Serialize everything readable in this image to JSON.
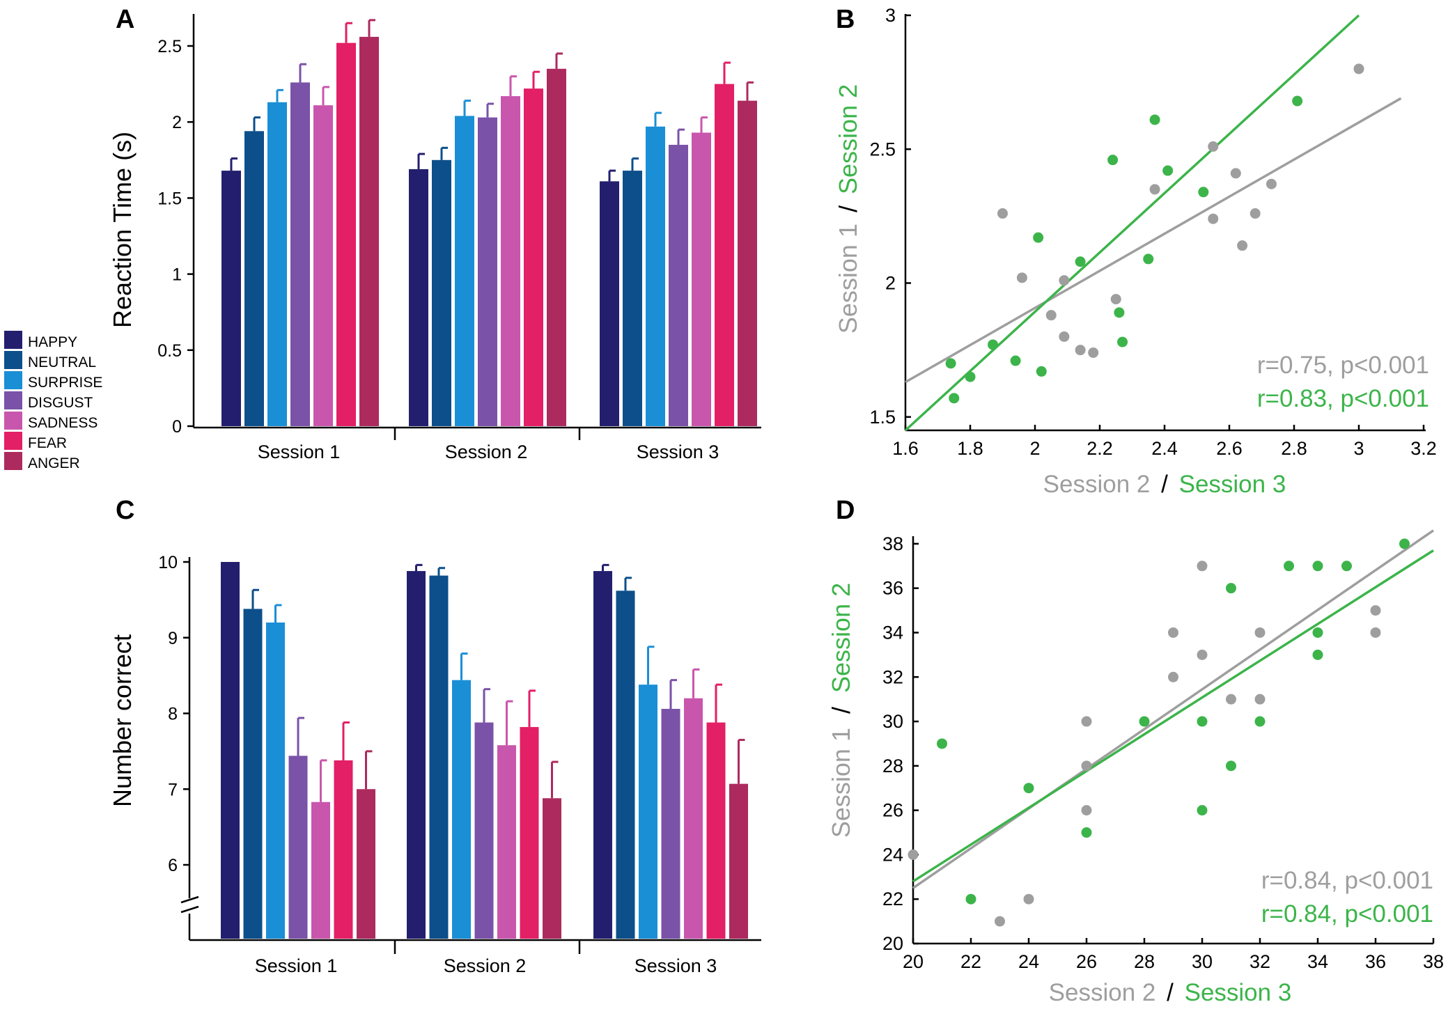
{
  "colors": {
    "HAPPY": "#231f6e",
    "NEUTRAL": "#0c4f8a",
    "SURPRISE": "#1a8fd6",
    "DISGUST": "#7a52a8",
    "SADNESS": "#c956ad",
    "FEAR": "#e31f66",
    "ANGER": "#ad2a5e",
    "gray": "#9e9e9e",
    "green": "#3cb44a"
  },
  "legend": [
    "HAPPY",
    "NEUTRAL",
    "SURPRISE",
    "DISGUST",
    "SADNESS",
    "FEAR",
    "ANGER"
  ],
  "chart_data": [
    {
      "panel": "A",
      "type": "bar",
      "ylabel": "Reaction Time (s)",
      "xlabel": "",
      "ylim": [
        0,
        2.7
      ],
      "yticks": [
        "0",
        "0.5",
        "1",
        "1.5",
        "2",
        "2.5"
      ],
      "categories": [
        "Session 1",
        "Session 2",
        "Session 3"
      ],
      "series": [
        {
          "name": "HAPPY",
          "values": [
            1.68,
            1.69,
            1.61
          ],
          "errors": [
            0.08,
            0.1,
            0.07
          ]
        },
        {
          "name": "NEUTRAL",
          "values": [
            1.94,
            1.75,
            1.68
          ],
          "errors": [
            0.09,
            0.08,
            0.08
          ]
        },
        {
          "name": "SURPRISE",
          "values": [
            2.13,
            2.04,
            1.97
          ],
          "errors": [
            0.08,
            0.1,
            0.09
          ]
        },
        {
          "name": "DISGUST",
          "values": [
            2.26,
            2.03,
            1.85
          ],
          "errors": [
            0.12,
            0.09,
            0.1
          ]
        },
        {
          "name": "SADNESS",
          "values": [
            2.11,
            2.17,
            1.93
          ],
          "errors": [
            0.12,
            0.13,
            0.1
          ]
        },
        {
          "name": "FEAR",
          "values": [
            2.52,
            2.22,
            2.25
          ],
          "errors": [
            0.13,
            0.11,
            0.14
          ]
        },
        {
          "name": "ANGER",
          "values": [
            2.56,
            2.35,
            2.14
          ],
          "errors": [
            0.11,
            0.1,
            0.12
          ]
        }
      ]
    },
    {
      "panel": "B",
      "type": "scatter",
      "xlabel_a": "Session 2",
      "xlabel_sep": "/",
      "xlabel_b": "Session 3",
      "ylabel_a": "Session 1",
      "ylabel_sep": "/",
      "ylabel_b": "Session 2",
      "xlim": [
        1.6,
        3.2
      ],
      "ylim": [
        1.45,
        3.0
      ],
      "xticks": [
        "1.6",
        "1.8",
        "2",
        "2.2",
        "2.4",
        "2.6",
        "2.8",
        "3",
        "3.2"
      ],
      "yticks": [
        "1.5",
        "2",
        "2.5",
        "3"
      ],
      "annotations": [
        "r=0.75, p<0.001",
        "r=0.83, p<0.001"
      ],
      "series": [
        {
          "name": "gray",
          "points": [
            [
              1.9,
              2.26
            ],
            [
              1.96,
              2.02
            ],
            [
              2.09,
              2.01
            ],
            [
              2.05,
              1.88
            ],
            [
              2.09,
              1.8
            ],
            [
              2.14,
              1.75
            ],
            [
              2.18,
              1.74
            ],
            [
              2.25,
              1.94
            ],
            [
              2.37,
              2.35
            ],
            [
              2.55,
              2.51
            ],
            [
              2.55,
              2.24
            ],
            [
              2.62,
              2.41
            ],
            [
              2.64,
              2.14
            ],
            [
              2.68,
              2.26
            ],
            [
              2.73,
              2.37
            ],
            [
              3.0,
              2.8
            ]
          ],
          "fit": [
            [
              1.6,
              1.63
            ],
            [
              3.13,
              2.69
            ]
          ]
        },
        {
          "name": "green",
          "points": [
            [
              1.74,
              1.7
            ],
            [
              1.75,
              1.57
            ],
            [
              1.8,
              1.65
            ],
            [
              1.87,
              1.77
            ],
            [
              1.94,
              1.71
            ],
            [
              2.01,
              2.17
            ],
            [
              2.02,
              1.67
            ],
            [
              2.14,
              2.08
            ],
            [
              2.24,
              2.46
            ],
            [
              2.26,
              1.89
            ],
            [
              2.27,
              1.78
            ],
            [
              2.35,
              2.09
            ],
            [
              2.37,
              2.61
            ],
            [
              2.41,
              2.42
            ],
            [
              2.52,
              2.34
            ],
            [
              2.81,
              2.68
            ]
          ],
          "fit": [
            [
              1.6,
              1.45
            ],
            [
              3.0,
              3.0
            ]
          ]
        }
      ]
    },
    {
      "panel": "C",
      "type": "bar",
      "ylabel": "Number correct",
      "xlabel": "",
      "ylim": [
        5.0,
        10.2
      ],
      "axis_break": true,
      "yticks": [
        "6",
        "7",
        "8",
        "9",
        "10"
      ],
      "categories": [
        "Session 1",
        "Session 2",
        "Session 3"
      ],
      "series": [
        {
          "name": "HAPPY",
          "values": [
            10.0,
            9.88,
            9.88
          ],
          "errors": [
            0.0,
            0.08,
            0.08
          ]
        },
        {
          "name": "NEUTRAL",
          "values": [
            9.38,
            9.82,
            9.62
          ],
          "errors": [
            0.25,
            0.1,
            0.17
          ]
        },
        {
          "name": "SURPRISE",
          "values": [
            9.2,
            8.44,
            8.38
          ],
          "errors": [
            0.23,
            0.35,
            0.5
          ]
        },
        {
          "name": "DISGUST",
          "values": [
            7.44,
            7.88,
            8.06
          ],
          "errors": [
            0.5,
            0.44,
            0.38
          ]
        },
        {
          "name": "SADNESS",
          "values": [
            6.83,
            7.58,
            8.2
          ],
          "errors": [
            0.55,
            0.58,
            0.38
          ]
        },
        {
          "name": "FEAR",
          "values": [
            7.38,
            7.82,
            7.88
          ],
          "errors": [
            0.5,
            0.48,
            0.5
          ]
        },
        {
          "name": "ANGER",
          "values": [
            7.0,
            6.88,
            7.07
          ],
          "errors": [
            0.5,
            0.48,
            0.58
          ]
        }
      ]
    },
    {
      "panel": "D",
      "type": "scatter",
      "xlabel_a": "Session 2",
      "xlabel_sep": "/",
      "xlabel_b": "Session 3",
      "ylabel_a": "Session 1",
      "ylabel_sep": "/",
      "ylabel_b": "Session 2",
      "xlim": [
        20,
        38
      ],
      "ylim": [
        20,
        39
      ],
      "xticks": [
        "20",
        "22",
        "24",
        "26",
        "28",
        "30",
        "32",
        "34",
        "36",
        "38"
      ],
      "yticks": [
        "20",
        "22",
        "24",
        "26",
        "28",
        "30",
        "32",
        "34",
        "36",
        "38"
      ],
      "annotations": [
        "r=0.84, p<0.001",
        "r=0.84, p<0.001"
      ],
      "series": [
        {
          "name": "gray",
          "points": [
            [
              20,
              24
            ],
            [
              23,
              21
            ],
            [
              24,
              22
            ],
            [
              26,
              30
            ],
            [
              26,
              28
            ],
            [
              26,
              26
            ],
            [
              29,
              34
            ],
            [
              29,
              32
            ],
            [
              30,
              37
            ],
            [
              30,
              33
            ],
            [
              31,
              31
            ],
            [
              32,
              34
            ],
            [
              32,
              31
            ],
            [
              36,
              35
            ],
            [
              36,
              34
            ]
          ],
          "fit": [
            [
              20,
              22.5
            ],
            [
              38,
              38.6
            ]
          ]
        },
        {
          "name": "green",
          "points": [
            [
              21,
              29
            ],
            [
              22,
              22
            ],
            [
              24,
              27
            ],
            [
              26,
              25
            ],
            [
              28,
              30
            ],
            [
              30,
              30
            ],
            [
              30,
              26
            ],
            [
              31,
              36
            ],
            [
              31,
              28
            ],
            [
              32,
              30
            ],
            [
              33,
              37
            ],
            [
              34,
              37
            ],
            [
              34,
              34
            ],
            [
              34,
              33
            ],
            [
              35,
              37
            ],
            [
              37,
              38
            ]
          ],
          "fit": [
            [
              20,
              22.8
            ],
            [
              38,
              37.7
            ]
          ]
        }
      ]
    }
  ],
  "panel_labels": [
    "A",
    "B",
    "C",
    "D"
  ]
}
